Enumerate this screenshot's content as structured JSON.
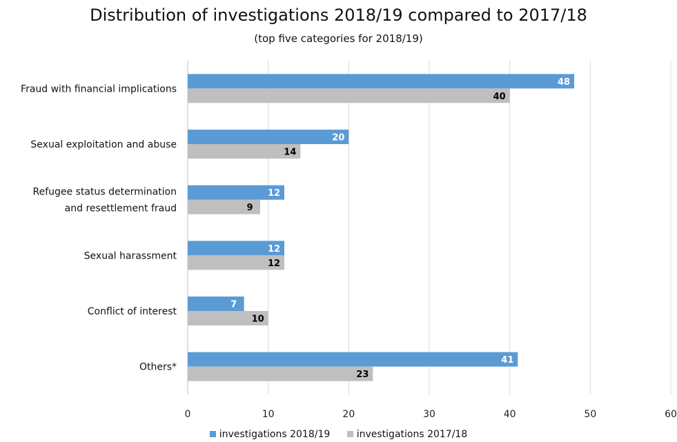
{
  "chart_data": {
    "type": "bar",
    "orientation": "horizontal",
    "title": "Distribution of investigations 2018/19 compared to 2017/18",
    "subtitle": "(top five categories for 2018/19)",
    "categories": [
      "Fraud with financial implications",
      "Sexual exploitation and abuse",
      "Refugee status determination and resettlement fraud",
      "Sexual harassment",
      "Conflict of interest",
      "Others*"
    ],
    "category_label_lines": [
      [
        "Fraud with financial implications"
      ],
      [
        "Sexual exploitation and abuse"
      ],
      [
        "Refugee status determination",
        "and resettlement fraud"
      ],
      [
        "Sexual harassment"
      ],
      [
        "Conflict of interest"
      ],
      [
        "Others*"
      ]
    ],
    "series": [
      {
        "name": "investigations 2018/19",
        "color": "#5b9bd5",
        "label_color": "#ffffff",
        "values": [
          48,
          20,
          12,
          12,
          7,
          41
        ]
      },
      {
        "name": "investigations 2017/18",
        "color": "#bfbfbf",
        "label_color": "#000000",
        "values": [
          40,
          14,
          9,
          12,
          10,
          23
        ]
      }
    ],
    "xlim": [
      0,
      60
    ],
    "xticks": [
      0,
      10,
      20,
      30,
      40,
      50,
      60
    ],
    "grid": true,
    "legend_position": "bottom"
  }
}
